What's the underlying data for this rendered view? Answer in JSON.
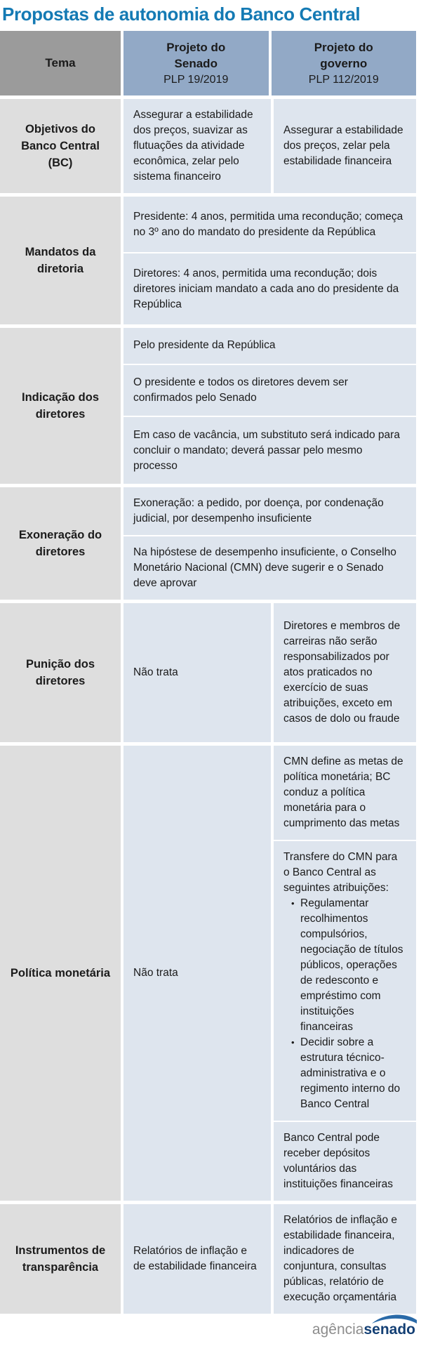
{
  "title": "Propostas de autonomia do Banco Central",
  "colors": {
    "title_blue": "#147ab4",
    "header_gray": "#9b9b9b",
    "header_blue": "#92a9c6",
    "tema_bg": "#dedede",
    "content_bg": "#dee5ee",
    "logo_gray": "#8c8c8c",
    "logo_navy": "#133f74",
    "logo_arc_blue": "#2a6aa8"
  },
  "table": {
    "header": {
      "tema": "Tema",
      "senado": [
        "Projeto do",
        "Senado",
        "PLP 19/2019"
      ],
      "governo": [
        "Projeto do",
        "governo",
        "PLP 112/2019"
      ]
    },
    "rows": [
      {
        "id": "objetivos",
        "tema": "Objetivos do Banco Central (BC)",
        "layout": "split",
        "senado": [
          {
            "text": "Assegurar a estabilidade dos preços, suavizar as flutuações da atividade econômica, zelar pelo sistema financeiro"
          }
        ],
        "governo": [
          {
            "text": "Assegurar a estabilidade dos preços, zelar pela estabilidade financeira"
          }
        ]
      },
      {
        "id": "mandatos",
        "tema": "Mandatos da diretoria",
        "layout": "full",
        "cells": [
          {
            "text": "Presidente: 4 anos, permitida uma recondução; começa no 3º ano do mandato do presidente da República"
          },
          {
            "text": "Diretores: 4 anos, permitida uma recondução; dois diretores iniciam mandato a cada ano do presidente da República"
          }
        ]
      },
      {
        "id": "indicacao",
        "tema": "Indicação dos diretores",
        "layout": "full",
        "cells": [
          {
            "text": "Pelo presidente da República"
          },
          {
            "text": "O presidente e todos os diretores devem ser confirmados pelo Senado"
          },
          {
            "text": "Em caso de vacância, um substituto será indicado para concluir o mandato; deverá passar pelo mesmo processo"
          }
        ]
      },
      {
        "id": "exoneracao",
        "tema": "Exoneração do diretores",
        "layout": "full",
        "cells": [
          {
            "text": "Exoneração: a pedido, por doença, por condenação judicial, por desempenho insuficiente"
          },
          {
            "text": "Na hipóstese de desempenho insuficiente, o Conselho Monetário Nacional (CMN) deve sugerir e o Senado deve aprovar"
          }
        ]
      },
      {
        "id": "punicao",
        "tema": "Punição dos diretores",
        "layout": "split",
        "senado": [
          {
            "text": "Não trata"
          }
        ],
        "governo": [
          {
            "text": "Diretores e membros de carreiras não serão responsabilizados por atos praticados no exercício de suas atribuições, exceto em casos de dolo ou fraude"
          }
        ]
      },
      {
        "id": "politica",
        "tema": "Política monetária",
        "layout": "split",
        "senado": [
          {
            "text": "Não trata"
          }
        ],
        "governo": [
          {
            "text": "CMN define as metas de política monetária; BC conduz a política monetária para o cumprimento das metas"
          },
          {
            "text": "Transfere do CMN para o Banco Central as seguintes atribuições:",
            "bullets": [
              "Regulamentar recolhimentos compulsórios, negociação de títulos públicos, operações de redesconto e empréstimo com instituições financeiras",
              "Decidir sobre a estrutura técnico-administrativa e o regimento interno do Banco Central"
            ]
          },
          {
            "text": "Banco Central pode receber depósitos voluntários das instituições financeiras"
          }
        ]
      },
      {
        "id": "instrumentos",
        "tema": "Instrumentos de transparência",
        "layout": "split",
        "senado": [
          {
            "text": "Relatórios de inflação e de estabilidade financeira"
          }
        ],
        "governo": [
          {
            "text": "Relatórios de inflação e estabilidade financeira, indicadores de conjuntura, consultas públicas, relatório de execução orçamentária"
          }
        ]
      }
    ]
  },
  "footer": {
    "agency": "agência",
    "brand": "senado"
  }
}
